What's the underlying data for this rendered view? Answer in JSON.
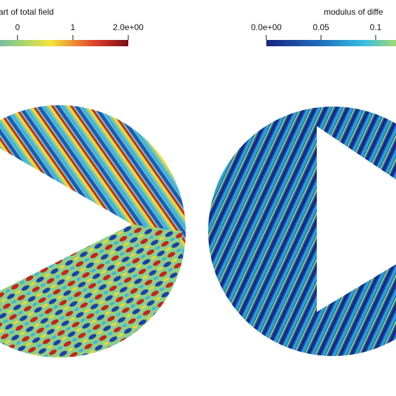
{
  "colorbars": [
    {
      "title": "art of total field",
      "range": [
        -2,
        2
      ],
      "ticks": [
        0,
        1,
        {
          "value": 2,
          "label": "2.0e+00"
        }
      ]
    },
    {
      "title": "modulus of diffe",
      "range": [
        0,
        0.2
      ],
      "ticks": [
        {
          "value": 0,
          "label": "0.0e+00"
        },
        0.05,
        0.1
      ]
    }
  ]
}
